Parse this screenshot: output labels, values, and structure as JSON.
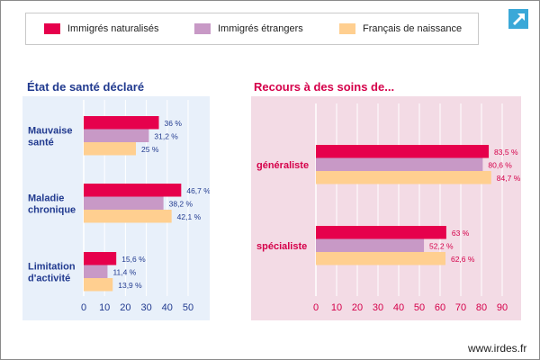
{
  "legend": {
    "items": [
      {
        "label": "Immigrés naturalisés",
        "color": "#e6004c"
      },
      {
        "label": "Immigrés étrangers",
        "color": "#c899c6"
      },
      {
        "label": "Français de naissance",
        "color": "#ffcf90"
      }
    ]
  },
  "expand_icon": "expand-arrow-icon",
  "footer": {
    "brand": "www.irdes.fr"
  },
  "colors": {
    "left_bg": "#e8f0fa",
    "right_bg": "#f3dbe5",
    "left_title": "#213a8f",
    "right_title": "#d5004a",
    "left_text": "#213a8f",
    "right_text": "#d5004a"
  },
  "chart_data": [
    {
      "type": "bar",
      "orientation": "horizontal",
      "title": "État de santé déclaré",
      "categories": [
        [
          "Mauvaise",
          "santé"
        ],
        [
          "Maladie",
          "chronique"
        ],
        [
          "Limitation",
          "d'activité"
        ]
      ],
      "series": [
        {
          "name": "Immigrés naturalisés",
          "values": [
            36,
            46.7,
            15.6
          ],
          "labels": [
            "36 %",
            "46,7 %",
            "15,6 %"
          ]
        },
        {
          "name": "Immigrés étrangers",
          "values": [
            31.2,
            38.2,
            11.4
          ],
          "labels": [
            "31,2 %",
            "38,2 %",
            "11,4 %"
          ]
        },
        {
          "name": "Français de naissance",
          "values": [
            25,
            42.1,
            13.9
          ],
          "labels": [
            "25 %",
            "42,1 %",
            "13,9 %"
          ]
        }
      ],
      "xlim": [
        0,
        50
      ],
      "ticks": [
        0,
        10,
        20,
        30,
        40,
        50
      ],
      "grid": true,
      "legend": "top"
    },
    {
      "type": "bar",
      "orientation": "horizontal",
      "title": "Recours à des soins de...",
      "categories": [
        [
          "généraliste"
        ],
        [
          "spécialiste"
        ]
      ],
      "series": [
        {
          "name": "Immigrés naturalisés",
          "values": [
            83.5,
            63
          ],
          "labels": [
            "83,5 %",
            "63 %"
          ]
        },
        {
          "name": "Immigrés étrangers",
          "values": [
            80.6,
            52.2
          ],
          "labels": [
            "80,6 %",
            "52,2 %"
          ]
        },
        {
          "name": "Français de naissance",
          "values": [
            84.7,
            62.6
          ],
          "labels": [
            "84,7 %",
            "62,6 %"
          ]
        }
      ],
      "xlim": [
        0,
        90
      ],
      "ticks": [
        0,
        10,
        20,
        30,
        40,
        50,
        60,
        70,
        80,
        90
      ],
      "grid": true,
      "legend": "top"
    }
  ]
}
